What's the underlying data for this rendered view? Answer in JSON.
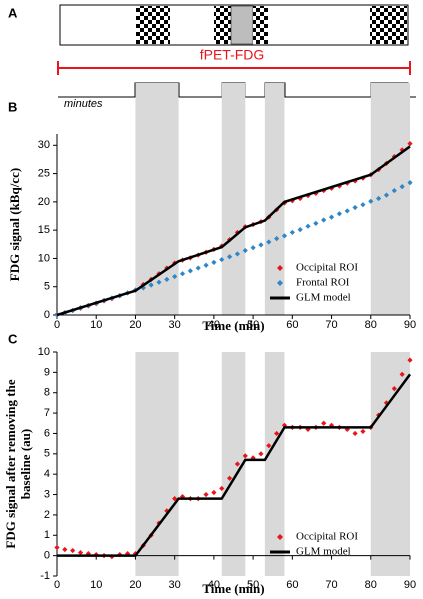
{
  "diagram": {
    "panel_label": "A",
    "protocol_label": "fPET-FDG",
    "timeline_label": "minutes",
    "durations": [
      "10",
      "5",
      "5",
      "10"
    ]
  },
  "chart_data": [
    {
      "type": "scatter",
      "panel_label": "B",
      "ylabel": "FDG signal (kBq/cc)",
      "xlabel": "Time (min)",
      "xlim": [
        0,
        90
      ],
      "xticks": [
        0,
        10,
        20,
        30,
        40,
        50,
        60,
        70,
        80,
        90
      ],
      "ylim": [
        0,
        32
      ],
      "yticks": [
        0,
        5,
        10,
        15,
        20,
        25,
        30
      ],
      "shaded": [
        [
          20,
          31
        ],
        [
          42,
          48
        ],
        [
          53,
          58
        ],
        [
          80,
          90
        ]
      ],
      "shade_color": "#d9d9d9",
      "series": [
        {
          "name": "Occipital ROI",
          "color": "#e8151b",
          "style": "scatter",
          "x": [
            0,
            2,
            4,
            6,
            8,
            10,
            12,
            14,
            16,
            18,
            20,
            22,
            24,
            26,
            28,
            30,
            32,
            34,
            36,
            38,
            40,
            42,
            44,
            46,
            48,
            50,
            52,
            54,
            56,
            58,
            60,
            62,
            64,
            66,
            68,
            70,
            72,
            74,
            76,
            78,
            80,
            82,
            84,
            86,
            88,
            90
          ],
          "values": [
            0.1,
            0.4,
            0.8,
            1.2,
            1.6,
            2.0,
            2.5,
            2.9,
            3.4,
            3.9,
            4.4,
            5.4,
            6.3,
            7.3,
            8.3,
            9.2,
            9.7,
            10.1,
            10.6,
            11.1,
            11.6,
            12.2,
            13.3,
            14.6,
            15.6,
            16.0,
            16.5,
            17.3,
            18.6,
            19.8,
            20.2,
            20.6,
            21.1,
            21.5,
            22.0,
            22.4,
            22.8,
            23.3,
            23.7,
            24.2,
            24.8,
            25.7,
            26.8,
            28.0,
            29.2,
            30.3
          ]
        },
        {
          "name": "Frontal ROI",
          "color": "#2e86c8",
          "style": "scatter",
          "x": [
            0,
            2,
            4,
            6,
            8,
            10,
            12,
            14,
            16,
            18,
            20,
            22,
            24,
            26,
            28,
            30,
            32,
            34,
            36,
            38,
            40,
            42,
            44,
            46,
            48,
            50,
            52,
            54,
            56,
            58,
            60,
            62,
            64,
            66,
            68,
            70,
            72,
            74,
            76,
            78,
            80,
            82,
            84,
            86,
            88,
            90
          ],
          "values": [
            0,
            0.4,
            0.8,
            1.3,
            1.7,
            2.1,
            2.6,
            3.0,
            3.4,
            3.9,
            4.4,
            4.8,
            5.3,
            5.8,
            6.3,
            6.8,
            7.3,
            7.8,
            8.3,
            8.8,
            9.3,
            9.8,
            10.3,
            10.8,
            11.4,
            11.9,
            12.4,
            12.9,
            13.5,
            14.0,
            14.6,
            15.1,
            15.7,
            16.2,
            16.8,
            17.3,
            17.9,
            18.4,
            19.0,
            19.5,
            20.1,
            20.6,
            21.2,
            22.0,
            22.7,
            23.4
          ]
        },
        {
          "name": "GLM model",
          "color": "#000000",
          "style": "line",
          "x": [
            0,
            20,
            31,
            42,
            48,
            53,
            58,
            80,
            90
          ],
          "values": [
            0,
            4.3,
            9.5,
            12.0,
            15.5,
            16.7,
            20.0,
            24.8,
            29.8
          ]
        }
      ]
    },
    {
      "type": "scatter",
      "panel_label": "C",
      "ylabel": [
        "FDG signal after removing the",
        "baseline (au)"
      ],
      "xlabel": "Time (min)",
      "xlim": [
        0,
        90
      ],
      "xticks": [
        0,
        10,
        20,
        30,
        40,
        50,
        60,
        70,
        80,
        90
      ],
      "ylim": [
        -1,
        10
      ],
      "yticks": [
        -1,
        0,
        1,
        2,
        3,
        4,
        5,
        6,
        7,
        8,
        9,
        10
      ],
      "shaded": [
        [
          20,
          31
        ],
        [
          42,
          48
        ],
        [
          53,
          58
        ],
        [
          80,
          90
        ]
      ],
      "shade_color": "#d9d9d9",
      "series": [
        {
          "name": "Occipital ROI",
          "color": "#e8151b",
          "style": "scatter",
          "x": [
            0,
            2,
            4,
            6,
            8,
            10,
            12,
            14,
            16,
            18,
            20,
            22,
            24,
            26,
            28,
            30,
            32,
            34,
            36,
            38,
            40,
            42,
            44,
            46,
            48,
            50,
            52,
            54,
            56,
            58,
            60,
            62,
            64,
            66,
            68,
            70,
            72,
            74,
            76,
            78,
            80,
            82,
            84,
            86,
            88,
            90
          ],
          "values": [
            0.4,
            0.3,
            0.25,
            0.15,
            0.1,
            0.05,
            0.0,
            -0.05,
            0.05,
            0.1,
            0.1,
            0.5,
            1.0,
            1.6,
            2.2,
            2.8,
            2.9,
            2.8,
            2.8,
            3.0,
            3.1,
            3.3,
            3.8,
            4.5,
            4.9,
            4.8,
            5.0,
            5.4,
            6.0,
            6.4,
            6.3,
            6.3,
            6.2,
            6.3,
            6.5,
            6.4,
            6.3,
            6.2,
            6.0,
            6.1,
            6.3,
            6.9,
            7.5,
            8.2,
            8.9,
            9.6
          ]
        },
        {
          "name": "GLM model",
          "color": "#000000",
          "style": "line",
          "x": [
            0,
            20,
            31,
            42,
            48,
            53,
            58,
            80,
            90
          ],
          "values": [
            0,
            0,
            2.8,
            2.8,
            4.7,
            4.7,
            6.3,
            6.3,
            8.9
          ]
        }
      ]
    }
  ]
}
